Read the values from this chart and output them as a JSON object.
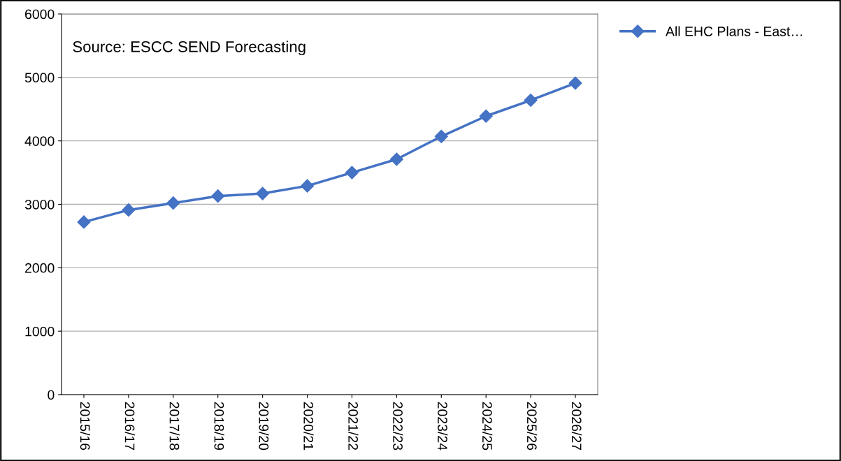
{
  "chart_data": {
    "type": "line",
    "categories": [
      "2015/16",
      "2016/17",
      "2017/18",
      "2018/19",
      "2019/20",
      "2020/21",
      "2021/22",
      "2022/23",
      "2023/24",
      "2024/25",
      "2025/26",
      "2026/27"
    ],
    "series": [
      {
        "name": "All EHC Plans - East…",
        "color": "#4472c4",
        "values": [
          2720,
          2910,
          3020,
          3130,
          3170,
          3290,
          3500,
          3710,
          4070,
          4390,
          4640,
          4910
        ]
      }
    ],
    "ylim": [
      0,
      6000
    ],
    "yticks": [
      0,
      1000,
      2000,
      3000,
      4000,
      5000,
      6000
    ],
    "grid": "y",
    "legend": "top right",
    "marker": "diamond",
    "line_style": "solid",
    "annotations": [
      "Source: ESCC SEND Forecasting"
    ]
  }
}
